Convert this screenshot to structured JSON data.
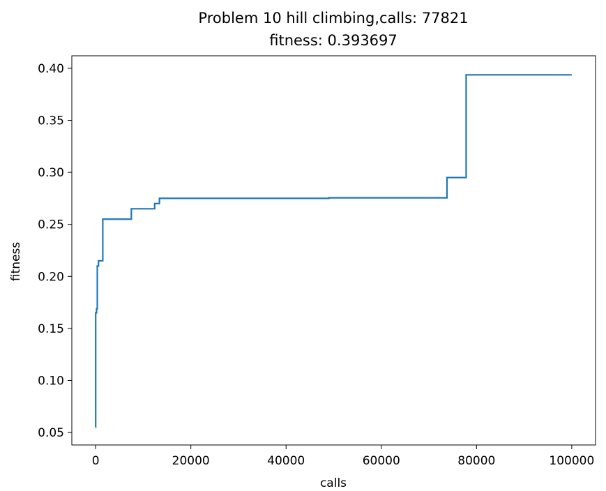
{
  "chart_data": {
    "type": "line",
    "title": "Problem 10 hill climbing,calls: 77821",
    "subtitle": "fitness: 0.393697",
    "xlabel": "calls",
    "ylabel": "fitness",
    "xlim": [
      -5000,
      105000
    ],
    "ylim": [
      0.038,
      0.412
    ],
    "xticks": [
      0,
      20000,
      40000,
      60000,
      80000,
      100000
    ],
    "xtick_labels": [
      "0",
      "20000",
      "40000",
      "60000",
      "80000",
      "100000"
    ],
    "yticks": [
      0.05,
      0.1,
      0.15,
      0.2,
      0.25,
      0.3,
      0.35,
      0.4
    ],
    "ytick_labels": [
      "0.05",
      "0.10",
      "0.15",
      "0.20",
      "0.25",
      "0.30",
      "0.35",
      "0.40"
    ],
    "grid": false,
    "series": [
      {
        "color": "#1f77b4",
        "step": true,
        "points": [
          [
            0,
            0.055
          ],
          [
            10,
            0.165
          ],
          [
            200,
            0.169
          ],
          [
            350,
            0.21
          ],
          [
            600,
            0.215
          ],
          [
            1500,
            0.255
          ],
          [
            7500,
            0.265
          ],
          [
            12400,
            0.27
          ],
          [
            13400,
            0.275
          ],
          [
            49000,
            0.2755
          ],
          [
            73800,
            0.295
          ],
          [
            77821,
            0.393697
          ],
          [
            100000,
            0.393697
          ]
        ]
      }
    ]
  }
}
